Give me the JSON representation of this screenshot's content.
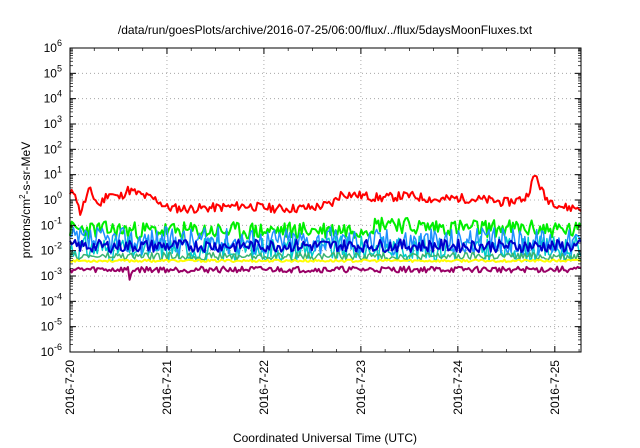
{
  "chart_data": {
    "type": "line",
    "title": "/data/run/goesPlots/archive/2016-07-25/06:00/flux/../flux/5daysMoonFluxes.txt",
    "xlabel": "Coordinated Universal Time (UTC)",
    "ylabel_parts": [
      "protons/cm",
      "2",
      "-s-sr-MeV"
    ],
    "y_scale": "log",
    "ylim_exp": [
      -6,
      6
    ],
    "y_ticks": [
      {
        "base": "10",
        "exp": "6"
      },
      {
        "base": "10",
        "exp": "5"
      },
      {
        "base": "10",
        "exp": "4"
      },
      {
        "base": "10",
        "exp": "3"
      },
      {
        "base": "10",
        "exp": "2"
      },
      {
        "base": "10",
        "exp": "1"
      },
      {
        "base": "10",
        "exp": "0"
      },
      {
        "base": "10",
        "exp": "-1"
      },
      {
        "base": "10",
        "exp": "-2"
      },
      {
        "base": "10",
        "exp": "-3"
      },
      {
        "base": "10",
        "exp": "-4"
      },
      {
        "base": "10",
        "exp": "-5"
      },
      {
        "base": "10",
        "exp": "-6"
      }
    ],
    "x_range_days": [
      0,
      5.27
    ],
    "x_ticks": [
      {
        "label": "2016-7-20",
        "day": 0
      },
      {
        "label": "2016-7-21",
        "day": 1
      },
      {
        "label": "2016-7-22",
        "day": 2
      },
      {
        "label": "2016-7-23",
        "day": 3
      },
      {
        "label": "2016-7-24",
        "day": 4
      },
      {
        "label": "2016-7-25",
        "day": 5
      }
    ],
    "grid": true,
    "series": [
      {
        "color": "#ff0000",
        "width": 2,
        "amp": 0.18,
        "seed": 11,
        "x": [
          0,
          0.05,
          0.1,
          0.15,
          0.2,
          0.3,
          0.4,
          0.5,
          0.6,
          0.75,
          0.9,
          1.0,
          1.2,
          1.5,
          1.8,
          2.0,
          2.2,
          2.5,
          2.7,
          2.8,
          3.0,
          3.2,
          3.5,
          3.8,
          4.0,
          4.3,
          4.5,
          4.7,
          4.8,
          4.9,
          5.0,
          5.1,
          5.2,
          5.27
        ],
        "y": [
          1.5,
          2.5,
          0.3,
          0.8,
          2.5,
          0.6,
          2.0,
          1.2,
          2.5,
          1.5,
          1.0,
          0.5,
          0.45,
          0.5,
          0.6,
          0.5,
          0.45,
          0.5,
          0.7,
          1.8,
          1.5,
          1.2,
          1.5,
          1.0,
          1.2,
          1.0,
          0.8,
          1.2,
          10,
          1.2,
          0.8,
          0.5,
          0.5,
          0.5
        ]
      },
      {
        "color": "#00ee00",
        "width": 2,
        "amp": 0.35,
        "seed": 23,
        "x": [
          0,
          1,
          2,
          3,
          3.3,
          3.5,
          4,
          5,
          5.27
        ],
        "y": [
          0.07,
          0.06,
          0.06,
          0.07,
          0.15,
          0.09,
          0.08,
          0.07,
          0.06
        ]
      },
      {
        "color": "#00cccc",
        "width": 1.5,
        "amp": 0.5,
        "seed": 31,
        "x": [
          0,
          2.5,
          5.27
        ],
        "y": [
          0.012,
          0.012,
          0.012
        ]
      },
      {
        "color": "#1e90ff",
        "width": 1.5,
        "amp": 0.55,
        "seed": 37,
        "x": [
          0,
          2.5,
          5.27
        ],
        "y": [
          0.025,
          0.025,
          0.022
        ]
      },
      {
        "color": "#0000cc",
        "width": 2,
        "amp": 0.25,
        "seed": 43,
        "x": [
          0,
          2.5,
          5.27
        ],
        "y": [
          0.015,
          0.016,
          0.015
        ]
      },
      {
        "color": "#3cb371",
        "width": 1.5,
        "amp": 0.15,
        "seed": 47,
        "x": [
          0,
          5.27
        ],
        "y": [
          0.006,
          0.006
        ]
      },
      {
        "color": "#ffff00",
        "width": 2,
        "amp": 0.05,
        "seed": 53,
        "x": [
          0,
          5.27
        ],
        "y": [
          0.004,
          0.004
        ]
      },
      {
        "color": "#990066",
        "width": 2,
        "amp": 0.12,
        "seed": 59,
        "x": [
          0,
          0.6,
          0.62,
          0.64,
          5.27
        ],
        "y": [
          0.0018,
          0.0018,
          0.0006,
          0.0018,
          0.0018
        ]
      }
    ]
  }
}
